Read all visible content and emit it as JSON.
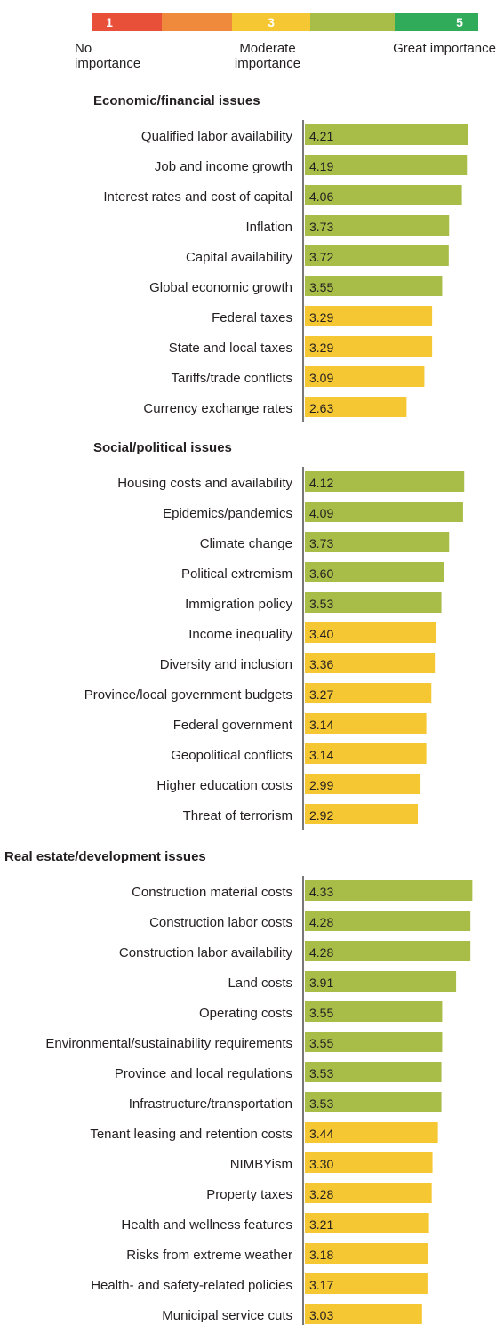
{
  "legend": {
    "scale": [
      {
        "num": "1",
        "color": "#e8503a",
        "label": "No importance"
      },
      {
        "num": "",
        "color": "#ef8a3c",
        "label": ""
      },
      {
        "num": "3",
        "color": "#f5c733",
        "label": "Moderate importance"
      },
      {
        "num": "",
        "color": "#a8bd48",
        "label": ""
      },
      {
        "num": "5",
        "color": "#2fab5a",
        "label": "Great importance"
      }
    ]
  },
  "colors": {
    "high": "#a8bd48",
    "moderate": "#f5c733",
    "axis": "#231f20"
  },
  "chart_data": {
    "type": "bar",
    "orientation": "horizontal",
    "color_rule": "bars with value >= 3.50 green, below 3.50 yellow",
    "groups": [
      {
        "title": "Economic/financial issues",
        "categories": [
          "Qualified labor availability",
          "Job and income growth",
          "Interest rates and cost of capital",
          "Inflation",
          "Capital availability",
          "Global economic growth",
          "Federal taxes",
          "State and local taxes",
          "Tariffs/trade conflicts",
          "Currency exchange rates"
        ],
        "values": [
          4.21,
          4.19,
          4.06,
          3.73,
          3.72,
          3.55,
          3.29,
          3.29,
          3.09,
          2.63
        ],
        "labels": [
          "4.21",
          "4.19",
          "4.06",
          "3.73",
          "3.72",
          "3.55",
          "3.29",
          "3.29",
          "3.09",
          "2.63"
        ]
      },
      {
        "title": "Social/political issues",
        "categories": [
          "Housing costs and availability",
          "Epidemics/pandemics",
          "Climate change",
          "Political extremism",
          "Immigration policy",
          "Income inequality",
          "Diversity and inclusion",
          "Province/local government budgets",
          "Federal government",
          "Geopolitical conflicts",
          "Higher education costs",
          "Threat of terrorism"
        ],
        "values": [
          4.12,
          4.09,
          3.73,
          3.6,
          3.53,
          3.4,
          3.36,
          3.27,
          3.14,
          3.14,
          2.99,
          2.92
        ],
        "labels": [
          "4.12",
          "4.09",
          "3.73",
          "3.60",
          "3.53",
          "3.40",
          "3.36",
          "3.27",
          "3.14",
          "3.14",
          "2.99",
          "2.92"
        ]
      },
      {
        "title": "Real estate/development issues",
        "categories": [
          "Construction material costs",
          "Construction labor costs",
          "Construction labor availability",
          "Land costs",
          "Operating costs",
          "Environmental/sustainability requirements",
          "Province and local regulations",
          "Infrastructure/transportation",
          "Tenant leasing and retention costs",
          "NIMBYism",
          "Property taxes",
          "Health and wellness features",
          "Risks from extreme weather",
          "Health- and safety-related policies",
          "Municipal service cuts"
        ],
        "values": [
          4.33,
          4.28,
          4.28,
          3.91,
          3.55,
          3.55,
          3.53,
          3.53,
          3.44,
          3.3,
          3.28,
          3.21,
          3.18,
          3.17,
          3.03
        ],
        "labels": [
          "4.33",
          "4.28",
          "4.28",
          "3.91",
          "3.55",
          "3.55",
          "3.53",
          "3.53",
          "3.44",
          "3.30",
          "3.28",
          "3.21",
          "3.18",
          "3.17",
          "3.03"
        ]
      }
    ]
  }
}
